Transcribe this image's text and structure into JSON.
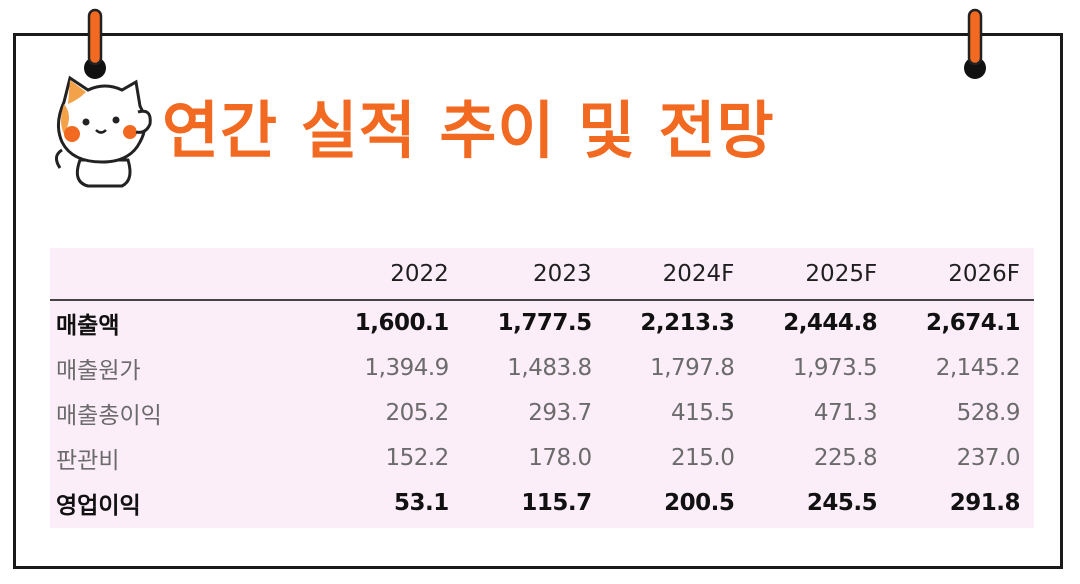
{
  "title": "연간 실적 추이 및 전망",
  "colors": {
    "accent": "#f26a21",
    "table_bg": "#fceef9",
    "frame": "#1a1a1a"
  },
  "table": {
    "columns": [
      "",
      "2022",
      "2023",
      "2024F",
      "2025F",
      "2026F"
    ],
    "rows": [
      {
        "label": "매출액",
        "values": [
          "1,600.1",
          "1,777.5",
          "2,213.3",
          "2,444.8",
          "2,674.1"
        ],
        "style": "bold"
      },
      {
        "label": "매출원가",
        "values": [
          "1,394.9",
          "1,483.8",
          "1,797.8",
          "1,973.5",
          "2,145.2"
        ],
        "style": "light"
      },
      {
        "label": "매출총이익",
        "values": [
          "205.2",
          "293.7",
          "415.5",
          "471.3",
          "528.9"
        ],
        "style": "light"
      },
      {
        "label": "판관비",
        "values": [
          "152.2",
          "178.0",
          "215.0",
          "225.8",
          "237.0"
        ],
        "style": "light"
      },
      {
        "label": "영업이익",
        "values": [
          "53.1",
          "115.7",
          "200.5",
          "245.5",
          "291.8"
        ],
        "style": "bold"
      }
    ]
  },
  "icons": {
    "pins": "pushpin-icon",
    "mascot": "cat-mascot-icon"
  }
}
